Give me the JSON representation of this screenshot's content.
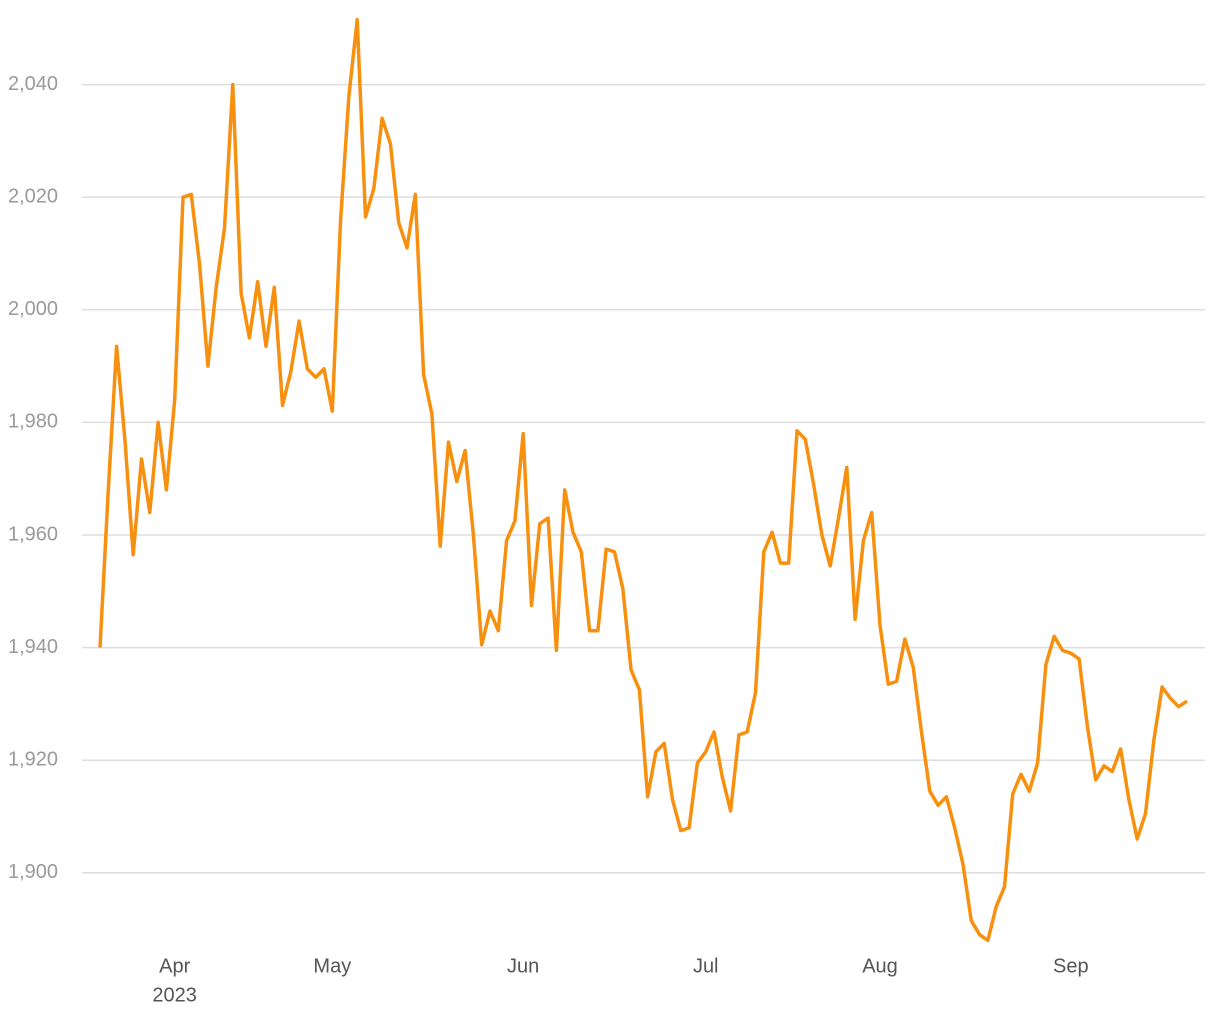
{
  "chart_data": {
    "type": "line",
    "categories": [
      null,
      null,
      null,
      null,
      null,
      null,
      null,
      null,
      null,
      "Apr",
      null,
      null,
      null,
      null,
      null,
      null,
      null,
      null,
      null,
      null,
      null,
      null,
      null,
      null,
      null,
      null,
      null,
      null,
      "May",
      null,
      null,
      null,
      null,
      null,
      null,
      null,
      null,
      null,
      null,
      null,
      null,
      null,
      null,
      null,
      null,
      null,
      null,
      null,
      null,
      null,
      null,
      "Jun",
      null,
      null,
      null,
      null,
      null,
      null,
      null,
      null,
      null,
      null,
      null,
      null,
      null,
      null,
      null,
      null,
      null,
      null,
      null,
      null,
      null,
      "Jul",
      null,
      null,
      null,
      null,
      null,
      null,
      null,
      null,
      null,
      null,
      null,
      null,
      null,
      null,
      null,
      null,
      null,
      null,
      null,
      null,
      "Aug",
      null,
      null,
      null,
      null,
      null,
      null,
      null,
      null,
      null,
      null,
      null,
      null,
      null,
      null,
      null,
      null,
      null,
      null,
      null,
      null,
      null,
      null,
      "Sep",
      null,
      null,
      null,
      null,
      null,
      null,
      null,
      null,
      null,
      null,
      null,
      null,
      null,
      null
    ],
    "year_label": "2023",
    "series": [
      {
        "color": "#f7900f",
        "values": [
          1940,
          1968,
          1993.5,
          1977,
          1956.5,
          1973.5,
          1964,
          1980,
          1968,
          1984,
          2020,
          2020.5,
          2008,
          1990,
          2004,
          2014.5,
          2040,
          2003,
          1995,
          2005,
          1993.5,
          2004,
          1983,
          1989,
          1998,
          1989.5,
          1988,
          1989.5,
          1982,
          2016,
          2038,
          2051.5,
          2016.5,
          2021.5,
          2034,
          2029.5,
          2015.5,
          2011,
          2020.5,
          1988.5,
          1981.5,
          1958,
          1976.5,
          1969.5,
          1975,
          1960,
          1940.5,
          1946.5,
          1943,
          1959,
          1962.5,
          1978,
          1947.5,
          1962,
          1963,
          1939.5,
          1968,
          1960.5,
          1957,
          1943,
          1943,
          1957.5,
          1957,
          1950.5,
          1936,
          1932.5,
          1913.5,
          1921.5,
          1923,
          1913,
          1907.5,
          1908,
          1919.5,
          1921.5,
          1925,
          1917,
          1911,
          1924.5,
          1925,
          1932,
          1957,
          1960.5,
          1955,
          1955,
          1978.5,
          1977,
          1969,
          1960,
          1954.5,
          1963,
          1972,
          1945,
          1959,
          1964,
          1944,
          1933.5,
          1934,
          1941.5,
          1936.5,
          1925,
          1914.5,
          1912,
          1913.5,
          1908,
          1901.5,
          1891.5,
          1889,
          1888,
          1894,
          1897.5,
          1914,
          1917.5,
          1914.5,
          1919.5,
          1937,
          1942,
          1939.5,
          1939,
          1938,
          1926,
          1916.5,
          1919,
          1918,
          1922,
          1913,
          1906,
          1910.5,
          1923.5,
          1933,
          1931,
          1929.5,
          1930.5
        ]
      }
    ],
    "ylim": [
      1887,
      2052
    ],
    "yticks": [
      {
        "value": 1900,
        "label": "1,900"
      },
      {
        "value": 1920,
        "label": "1,920"
      },
      {
        "value": 1940,
        "label": "1,940"
      },
      {
        "value": 1960,
        "label": "1,960"
      },
      {
        "value": 1980,
        "label": "1,980"
      },
      {
        "value": 2000,
        "label": "2,000"
      },
      {
        "value": 2020,
        "label": "2,020"
      },
      {
        "value": 2040,
        "label": "2,040"
      }
    ],
    "grid": true
  }
}
